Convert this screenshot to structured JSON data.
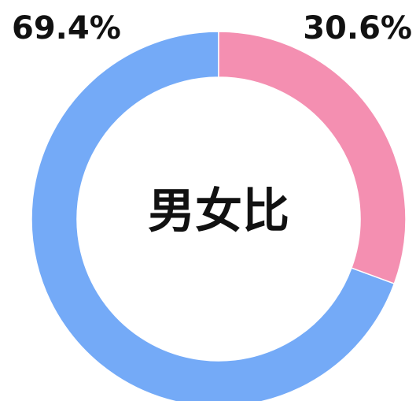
{
  "chart_data": {
    "type": "donut",
    "title": "男女比",
    "values": [
      30.6,
      69.4
    ],
    "value_labels": [
      "30.6%",
      "69.4%"
    ],
    "colors": [
      "#f48fb1",
      "#74aaf7"
    ]
  }
}
